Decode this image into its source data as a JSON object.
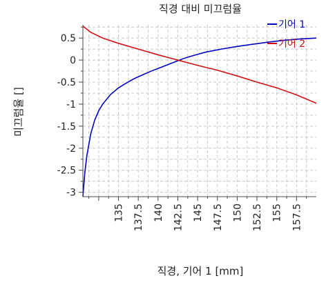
{
  "chart_data": {
    "type": "line",
    "title": "직경 대비 미끄럼율",
    "xlabel": "직경, 기어 1 [mm]",
    "ylabel": "미끄럼율 []",
    "xlim": [
      130.5,
      160
    ],
    "ylim": [
      -3.1,
      0.8
    ],
    "xticks": [
      135,
      137.5,
      140,
      142.5,
      145,
      147.5,
      150,
      152.5,
      155,
      157.5
    ],
    "xtick_labels": [
      "135",
      "137.5",
      "140",
      "142.5",
      "145",
      "147.5",
      "150",
      "152.5",
      "155",
      "157.5"
    ],
    "yticks": [
      0.5,
      0,
      -0.5,
      -1,
      -1.5,
      -2,
      -2.5,
      -3
    ],
    "ytick_labels": [
      "0.5",
      "0",
      "-0.5",
      "-1",
      "-1.5",
      "-2",
      "-2.5",
      "-3"
    ],
    "grid": true,
    "legend_position": "top-right",
    "series": [
      {
        "name": "기어 1",
        "color": "#0000c0",
        "points": [
          [
            130.5,
            -3.1
          ],
          [
            130.75,
            -2.55
          ],
          [
            131.0,
            -2.17
          ],
          [
            131.5,
            -1.67
          ],
          [
            132.0,
            -1.36
          ],
          [
            132.5,
            -1.15
          ],
          [
            133.0,
            -1.0
          ],
          [
            134.0,
            -0.78
          ],
          [
            135.0,
            -0.63
          ],
          [
            136.0,
            -0.52
          ],
          [
            137.0,
            -0.42
          ],
          [
            138.0,
            -0.34
          ],
          [
            139.0,
            -0.26
          ],
          [
            140.0,
            -0.19
          ],
          [
            141.0,
            -0.12
          ],
          [
            142.0,
            -0.05
          ],
          [
            143.0,
            0.02
          ],
          [
            144.0,
            0.08
          ],
          [
            145.0,
            0.13
          ],
          [
            146.0,
            0.18
          ],
          [
            148.0,
            0.25
          ],
          [
            150.0,
            0.31
          ],
          [
            152.0,
            0.36
          ],
          [
            154.0,
            0.41
          ],
          [
            156.0,
            0.45
          ],
          [
            158.0,
            0.48
          ],
          [
            160.0,
            0.5
          ]
        ]
      },
      {
        "name": "기어 2",
        "color": "#d01010",
        "points": [
          [
            130.5,
            0.77
          ],
          [
            131.5,
            0.63
          ],
          [
            133.0,
            0.5
          ],
          [
            135.0,
            0.38
          ],
          [
            137.5,
            0.25
          ],
          [
            140.0,
            0.12
          ],
          [
            142.5,
            0.0
          ],
          [
            145.0,
            -0.12
          ],
          [
            147.5,
            -0.23
          ],
          [
            150.0,
            -0.36
          ],
          [
            152.5,
            -0.5
          ],
          [
            155.0,
            -0.63
          ],
          [
            157.5,
            -0.79
          ],
          [
            160.0,
            -0.98
          ]
        ]
      }
    ]
  }
}
